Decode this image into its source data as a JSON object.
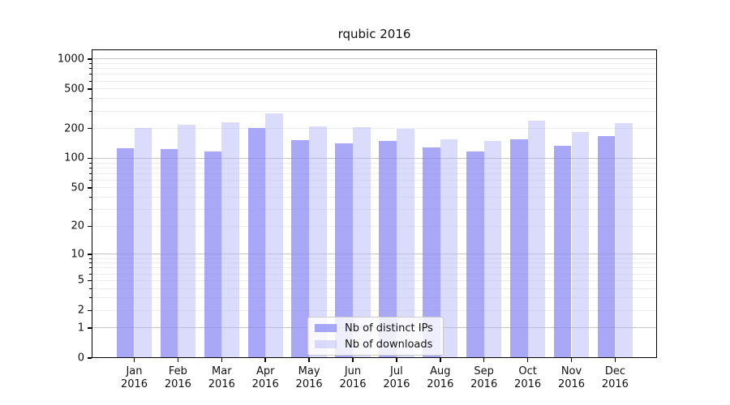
{
  "chart_data": {
    "type": "bar",
    "title": "rqubic 2016",
    "categories": [
      "Jan",
      "Feb",
      "Mar",
      "Apr",
      "May",
      "Jun",
      "Jul",
      "Aug",
      "Sep",
      "Oct",
      "Nov",
      "Dec"
    ],
    "category_year": "2016",
    "series": [
      {
        "name": "Nb of distinct IPs",
        "color": "rgba(134,134,242,0.72)",
        "values": [
          126,
          124,
          117,
          202,
          152,
          143,
          149,
          130,
          117,
          155,
          133,
          167
        ]
      },
      {
        "name": "Nb of downloads",
        "color": "rgba(183,183,247,0.5)",
        "values": [
          201,
          219,
          231,
          286,
          212,
          208,
          200,
          155,
          149,
          238,
          186,
          228
        ]
      }
    ],
    "y_ticks": [
      0,
      1,
      2,
      5,
      10,
      20,
      50,
      100,
      200,
      500,
      1000
    ],
    "y_scale": "log1p",
    "y_axis_top_value": 1250,
    "grid": true,
    "legend": {
      "location": "lower-center",
      "entries": [
        "Nb of distinct IPs",
        "Nb of downloads"
      ]
    }
  },
  "colors": {
    "background": "#ffffff",
    "frame": "#000000",
    "grid_major": "#c4c4c4",
    "grid_minor": "#ededed",
    "text": "#111111",
    "legend_border": "#cbcbcb"
  }
}
